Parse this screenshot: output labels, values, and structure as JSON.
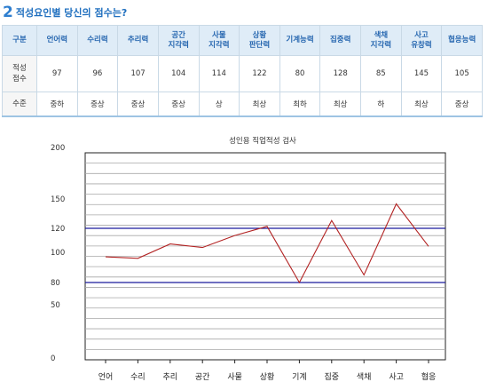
{
  "section": {
    "number": "2",
    "title": "적성요인별 당신의 점수는?"
  },
  "table": {
    "header_label": "구분",
    "columns": [
      "언어력",
      "수리력",
      "추리력",
      "공간\n지각력",
      "사물\n지각력",
      "상황\n판단력",
      "기계능력",
      "집중력",
      "색채\n지각력",
      "사고\n유창력",
      "협응능력"
    ],
    "score_label": "적성\n점수",
    "scores": [
      97,
      96,
      107,
      104,
      114,
      122,
      80,
      128,
      85,
      145,
      105
    ],
    "level_label": "수준",
    "levels": [
      "중하",
      "중상",
      "중상",
      "중상",
      "상",
      "최상",
      "최하",
      "최상",
      "하",
      "최상",
      "중상"
    ]
  },
  "chart_data": {
    "type": "line",
    "title": "성인용 직업적성 검사",
    "categories": [
      "언어",
      "수리",
      "추리",
      "공간",
      "사물",
      "상황",
      "기계",
      "집중",
      "색채",
      "사고",
      "협응"
    ],
    "series": [
      {
        "values": [
          97,
          96,
          107,
          104,
          114,
          122,
          80,
          128,
          85,
          145,
          105
        ]
      }
    ],
    "y_ticks": [
      200,
      150,
      120,
      100,
      80,
      50,
      0
    ],
    "reference_lines": [
      120,
      80
    ],
    "grid": true,
    "colors": {
      "line": "#b22222",
      "reference": "#1a1a9e",
      "grid": "#a8a8a8"
    }
  }
}
